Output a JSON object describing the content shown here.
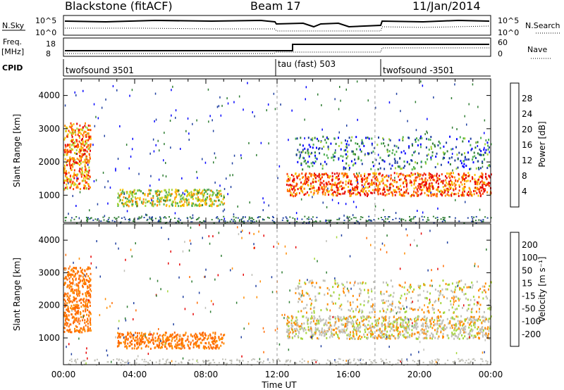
{
  "header": {
    "station": "Blackstone (fitACF)",
    "beam": "Beam 17",
    "date": "11/Jan/2014"
  },
  "panels": {
    "nsky": {
      "left_label": "N.Sky",
      "left_ticks": [
        "10^5",
        "10^0"
      ],
      "right_label": "N.Search",
      "right_ticks": [
        "10^5",
        "10^0"
      ]
    },
    "freq": {
      "left_label_1": "Freq.",
      "left_label_2": "[MHz]",
      "left_ticks": [
        "18",
        "8"
      ],
      "right_label": "Nave",
      "right_ticks": [
        "60",
        "0"
      ]
    },
    "cpid": {
      "label": "CPID",
      "segments": [
        {
          "start_hour": 0,
          "name": "twofsound 3501"
        },
        {
          "start_hour": 12,
          "name": "tau (fast) 503"
        },
        {
          "start_hour": 17.5,
          "name": "twofsound -3501"
        }
      ]
    }
  },
  "colors": {
    "power_scale": [
      "#0000ff",
      "#1f3fa0",
      "#2e7d32",
      "#4caf50",
      "#a5d63b",
      "#f5c400",
      "#ff8c00",
      "#ff3c00",
      "#e60000"
    ],
    "velocity_scale": [
      "#0000ff",
      "#1f3fa0",
      "#2e7d32",
      "#4caf50",
      "#a5d63b",
      "#c0c0b8",
      "#ff8c00",
      "#ff6a00",
      "#e60000"
    ]
  },
  "chart_data": [
    {
      "type": "heatmap",
      "name": "power",
      "ylabel": "Slant Range [km]",
      "yticks": [
        "4000",
        "3000",
        "2000",
        "1000"
      ],
      "ylim": [
        180,
        4500
      ],
      "xlim": [
        0,
        24
      ],
      "colorbar_label": "Power [dB]",
      "colorbar_ticks": [
        "28",
        "24",
        "20",
        "16",
        "12",
        "8",
        "4"
      ],
      "zlim": [
        0,
        30
      ],
      "features": [
        {
          "t": [
            0,
            1.5
          ],
          "r": [
            1200,
            3200
          ],
          "level": 22
        },
        {
          "t": [
            3.0,
            9.0
          ],
          "r": [
            700,
            1200
          ],
          "level": 16
        },
        {
          "t": [
            12.5,
            24
          ],
          "r": [
            1000,
            1700
          ],
          "level": 24
        },
        {
          "t": [
            13.0,
            24
          ],
          "r": [
            1800,
            2800
          ],
          "level": 8
        }
      ]
    },
    {
      "type": "heatmap",
      "name": "velocity",
      "ylabel": "Slant Range [km]",
      "yticks": [
        "4000",
        "3000",
        "2000",
        "1000"
      ],
      "ylim": [
        180,
        4500
      ],
      "xlim": [
        0,
        24
      ],
      "xticks": [
        "00:00",
        "04:00",
        "08:00",
        "12:00",
        "16:00",
        "20:00",
        "00:00"
      ],
      "xlabel": "Time UT",
      "colorbar_label": "Velocity [m s⁻¹]",
      "colorbar_ticks": [
        "200",
        "100",
        "50",
        "15",
        "-15",
        "-50",
        "-100",
        "-200"
      ],
      "zlim": [
        -200,
        200
      ],
      "features": [
        {
          "t": [
            0,
            1.5
          ],
          "r": [
            1200,
            3200
          ],
          "level": -60
        },
        {
          "t": [
            3.0,
            9.0
          ],
          "r": [
            700,
            1200
          ],
          "level": -60
        },
        {
          "t": [
            12.5,
            24
          ],
          "r": [
            1000,
            1700
          ],
          "level": 0
        },
        {
          "t": [
            13.0,
            24
          ],
          "r": [
            1800,
            2800
          ],
          "level": 0
        }
      ]
    }
  ]
}
